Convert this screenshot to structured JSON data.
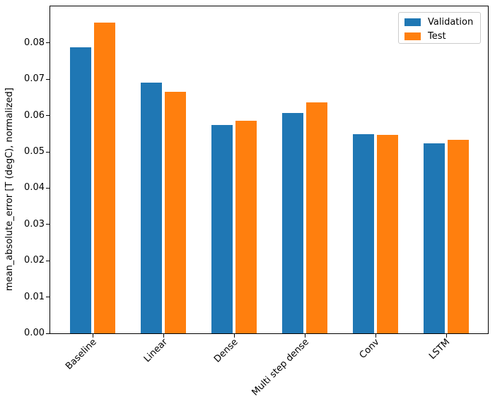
{
  "chart_data": {
    "type": "bar",
    "title": "",
    "xlabel": "",
    "ylabel": "mean_absolute_error [T (degC), normalized]",
    "categories": [
      "Baseline",
      "Linear",
      "Dense",
      "Multi step dense",
      "Conv",
      "LSTM"
    ],
    "series": [
      {
        "name": "Validation",
        "color": "#1f77b4",
        "values": [
          0.0788,
          0.069,
          0.0574,
          0.0608,
          0.0548,
          0.0524
        ]
      },
      {
        "name": "Test",
        "color": "#ff7f0e",
        "values": [
          0.0857,
          0.0666,
          0.0586,
          0.0636,
          0.0546,
          0.0534
        ]
      }
    ],
    "ylim": [
      0,
      0.0903
    ],
    "yticks": [
      {
        "value": 0.0,
        "label": "0.00"
      },
      {
        "value": 0.01,
        "label": "0.01"
      },
      {
        "value": 0.02,
        "label": "0.02"
      },
      {
        "value": 0.03,
        "label": "0.03"
      },
      {
        "value": 0.04,
        "label": "0.04"
      },
      {
        "value": 0.05,
        "label": "0.05"
      },
      {
        "value": 0.06,
        "label": "0.06"
      },
      {
        "value": 0.07,
        "label": "0.07"
      },
      {
        "value": 0.08,
        "label": "0.08"
      }
    ],
    "grid": false,
    "bar_width_fraction": 0.3,
    "bar_offset_fraction": 0.17,
    "legend": {
      "position": "upper right",
      "labels": [
        "Validation",
        "Test"
      ]
    },
    "colors": {
      "axis": "#000000",
      "legend_border": "#cccccc",
      "background": "#ffffff"
    }
  }
}
